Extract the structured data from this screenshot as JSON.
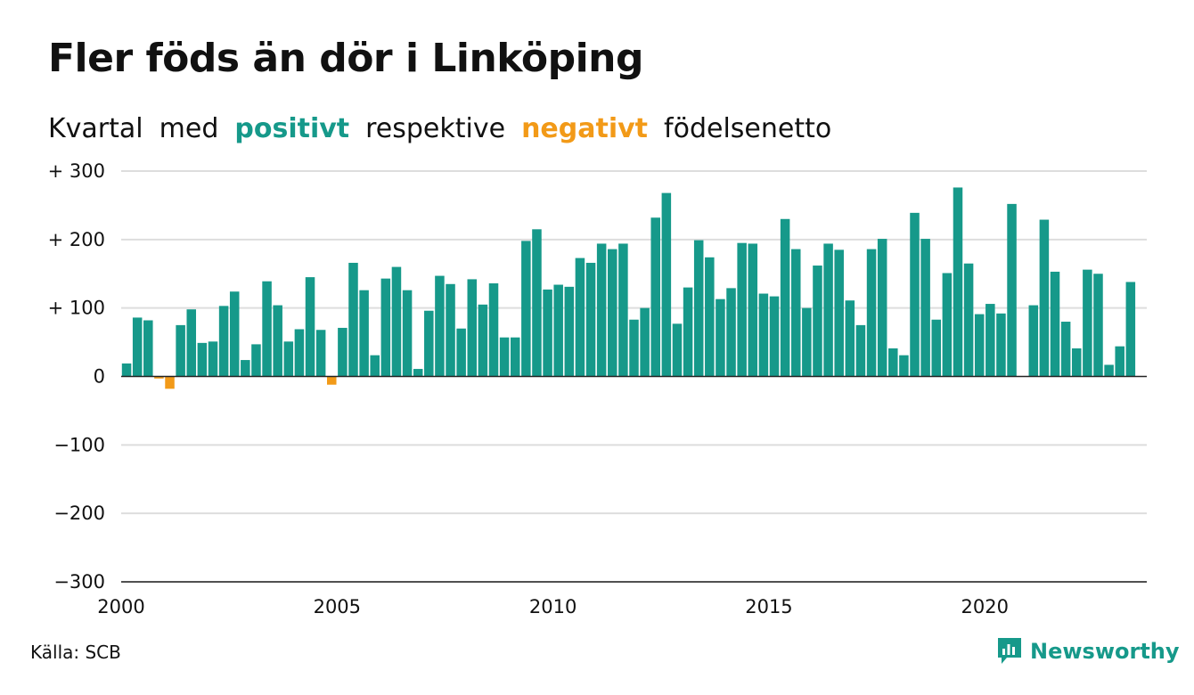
{
  "title": "Fler föds än dör i Linköping",
  "subtitle": {
    "part1": "Kvartal",
    "part2": "med",
    "positive": "positivt",
    "part3": "respektive",
    "negative": "negativt",
    "part4": "födelsenetto"
  },
  "source": "Källa: SCB",
  "brand": {
    "name": "Newsworthy",
    "icon": "newsworthy-logo-icon"
  },
  "colors": {
    "positive": "#16998a",
    "negative": "#f29a18",
    "grid": "#dddddd",
    "text": "#111111"
  },
  "chart_data": {
    "type": "bar",
    "ylim": [
      -300,
      300
    ],
    "xlim": [
      2000,
      2023.75
    ],
    "yticks": [
      300,
      200,
      100,
      0,
      -100,
      -200,
      -300
    ],
    "ytick_labels": [
      "+ 300",
      "+ 200",
      "+ 100",
      "0",
      "−100",
      "−200",
      "−300"
    ],
    "xticks": [
      2000,
      2005,
      2010,
      2015,
      2020
    ],
    "xtick_labels": [
      "2000",
      "2005",
      "2010",
      "2015",
      "2020"
    ],
    "grid": true,
    "start_year": 2000,
    "periods_per_year": 4,
    "values": [
      19,
      86,
      82,
      -3,
      -18,
      75,
      98,
      49,
      51,
      103,
      124,
      24,
      47,
      139,
      104,
      51,
      69,
      145,
      68,
      -12,
      71,
      166,
      126,
      31,
      143,
      160,
      126,
      11,
      96,
      147,
      135,
      70,
      142,
      105,
      136,
      57,
      57,
      198,
      215,
      127,
      134,
      131,
      173,
      166,
      194,
      186,
      194,
      83,
      100,
      232,
      268,
      77,
      130,
      199,
      174,
      113,
      129,
      195,
      194,
      121,
      117,
      230,
      186,
      100,
      162,
      194,
      185,
      111,
      75,
      186,
      201,
      41,
      31,
      239,
      201,
      83,
      151,
      276,
      165,
      91,
      106,
      92,
      252,
      0,
      104,
      229,
      153,
      80,
      41,
      156,
      150,
      17,
      44,
      138
    ]
  }
}
